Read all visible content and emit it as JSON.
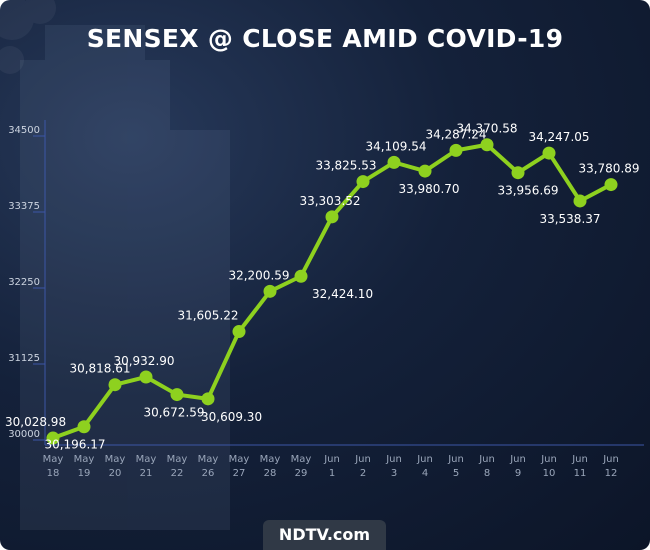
{
  "title": "SENSEX @ CLOSE AMID COVID-19",
  "brand": "NDTV.com",
  "colors": {
    "line": "#8ed11f",
    "point": "#8ed11f",
    "axis": "#3c56a6",
    "background": "#14213a"
  },
  "chart_data": {
    "type": "line",
    "title": "SENSEX @ CLOSE AMID COVID-19",
    "xlabel": "",
    "ylabel": "",
    "categories": [
      [
        "May",
        "18"
      ],
      [
        "May",
        "19"
      ],
      [
        "May",
        "20"
      ],
      [
        "May",
        "21"
      ],
      [
        "May",
        "22"
      ],
      [
        "May",
        "26"
      ],
      [
        "May",
        "27"
      ],
      [
        "May",
        "28"
      ],
      [
        "May",
        "29"
      ],
      [
        "Jun",
        "1"
      ],
      [
        "Jun",
        "2"
      ],
      [
        "Jun",
        "3"
      ],
      [
        "Jun",
        "4"
      ],
      [
        "Jun",
        "5"
      ],
      [
        "Jun",
        "8"
      ],
      [
        "Jun",
        "9"
      ],
      [
        "Jun",
        "10"
      ],
      [
        "Jun",
        "11"
      ],
      [
        "Jun",
        "12"
      ]
    ],
    "values": [
      30028.98,
      30196.17,
      30818.61,
      30932.9,
      30672.59,
      30609.3,
      31605.22,
      32200.59,
      32424.1,
      33303.52,
      33825.53,
      34109.54,
      33980.7,
      34287.24,
      34370.58,
      33956.69,
      34247.05,
      33538.37,
      33780.89
    ],
    "value_labels": [
      "30,028.98",
      "30,196.17",
      "30,818.61",
      "30,932.90",
      "30,672.59",
      "30,609.30",
      "31,605.22",
      "32,200.59",
      "32,424.10",
      "33,303.52",
      "33,825.53",
      "34,109.54",
      "33,980.70",
      "34,287.24",
      "34,370.58",
      "33,956.69",
      "34,247.05",
      "33,538.37",
      "33,780.89"
    ],
    "label_side": [
      "above",
      "below",
      "above",
      "above",
      "below",
      "below",
      "above",
      "above",
      "below",
      "above",
      "above",
      "above",
      "below",
      "above",
      "above",
      "below",
      "above",
      "below",
      "above"
    ],
    "yticks": [
      "30000",
      "31125",
      "32250",
      "33375",
      "34500"
    ],
    "ylim": [
      30000,
      34500
    ],
    "grid": false
  }
}
